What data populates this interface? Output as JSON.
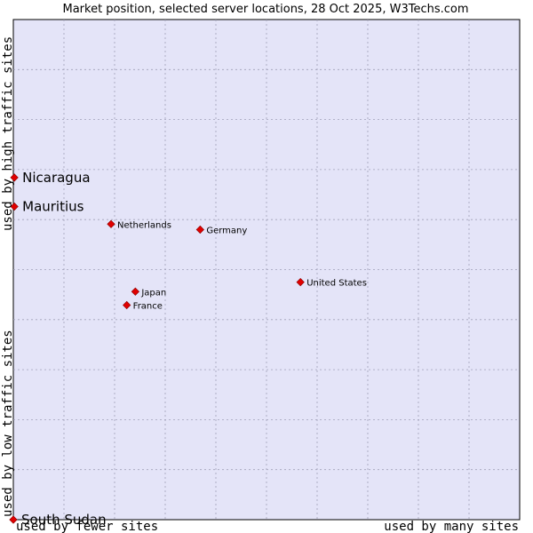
{
  "chart_data": {
    "type": "scatter",
    "title": "Market position, selected server locations, 28 Oct 2025, W3Techs.com",
    "xlabel_left": "used by fewer sites",
    "xlabel_right": "used by many sites",
    "ylabel_bottom": "used by low traffic sites",
    "ylabel_top": "used by high traffic sites",
    "xlim": [
      0,
      100
    ],
    "ylim": [
      0,
      100
    ],
    "grid": true,
    "colors": {
      "plot_bg": "#e4e4f8",
      "grid": "#a0a0b8",
      "point": "#e00000",
      "point_stroke": "#880000"
    },
    "points": [
      {
        "label": "Nicaragua",
        "x": 0.2,
        "y": 68.4,
        "emphasis": true
      },
      {
        "label": "Mauritius",
        "x": 0.2,
        "y": 62.6,
        "emphasis": true
      },
      {
        "label": "Netherlands",
        "x": 19.3,
        "y": 59.1,
        "emphasis": false
      },
      {
        "label": "Germany",
        "x": 36.9,
        "y": 58.0,
        "emphasis": false
      },
      {
        "label": "United States",
        "x": 56.7,
        "y": 47.5,
        "emphasis": false
      },
      {
        "label": "Japan",
        "x": 24.1,
        "y": 45.6,
        "emphasis": false
      },
      {
        "label": "France",
        "x": 22.4,
        "y": 42.9,
        "emphasis": false
      },
      {
        "label": "South Sudan",
        "x": 0.0,
        "y": 0.0,
        "emphasis": true
      }
    ]
  }
}
